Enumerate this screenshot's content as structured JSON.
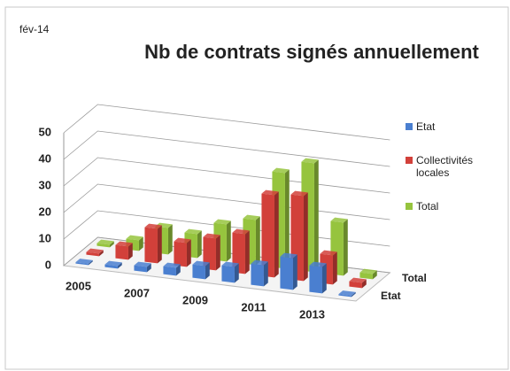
{
  "chart_data": {
    "type": "bar3d",
    "title": "Nb de contrats signés annuellement",
    "subtitle": "fév-14",
    "categories": [
      "2005",
      null,
      "2007",
      null,
      "2009",
      null,
      "2011",
      null,
      "2013",
      null
    ],
    "series": [
      {
        "name": "Etat",
        "color": "#4a7fd0",
        "values": [
          0.5,
          1,
          2,
          3,
          5,
          6,
          8,
          12,
          10,
          0.5
        ]
      },
      {
        "name": "Collectivités locales",
        "color": "#d2403a",
        "values": [
          1,
          5,
          13,
          9,
          12,
          15,
          31,
          32,
          11,
          2
        ]
      },
      {
        "name": "Total",
        "color": "#96c43e",
        "values": [
          1,
          4,
          10,
          9,
          14,
          17,
          36,
          41,
          20,
          2
        ]
      }
    ],
    "depth_labels": [
      "Etat",
      null,
      "Total"
    ],
    "ylim": [
      0,
      50
    ],
    "yticks": [
      0,
      10,
      20,
      30,
      40,
      50
    ],
    "grid": true
  }
}
